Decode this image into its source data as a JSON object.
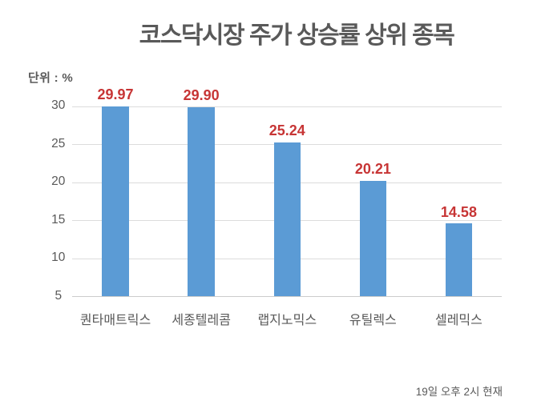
{
  "chart_data": {
    "type": "bar",
    "title": "코스닥시장 주가 상승률 상위 종목",
    "unit_label": "단위 : %",
    "footer": "19일 오후 2시 현재",
    "categories": [
      "퀀타매트릭스",
      "세종텔레콤",
      "랩지노믹스",
      "유틸렉스",
      "셀레믹스"
    ],
    "values": [
      29.97,
      29.9,
      25.24,
      20.21,
      14.58
    ],
    "value_labels": [
      "29.97",
      "29.90",
      "25.24",
      "20.21",
      "14.58"
    ],
    "ylabel": "",
    "xlabel": "",
    "yticks": [
      30,
      25,
      20,
      15,
      10,
      5
    ],
    "ylim": [
      5,
      30
    ],
    "grid": true,
    "legend": false,
    "colors": {
      "bar": "#5b9bd5",
      "value_label": "#c73535",
      "text": "#595959",
      "gridline": "#dcdcdc",
      "axisline": "#cccccc",
      "background": "#ffffff"
    }
  }
}
